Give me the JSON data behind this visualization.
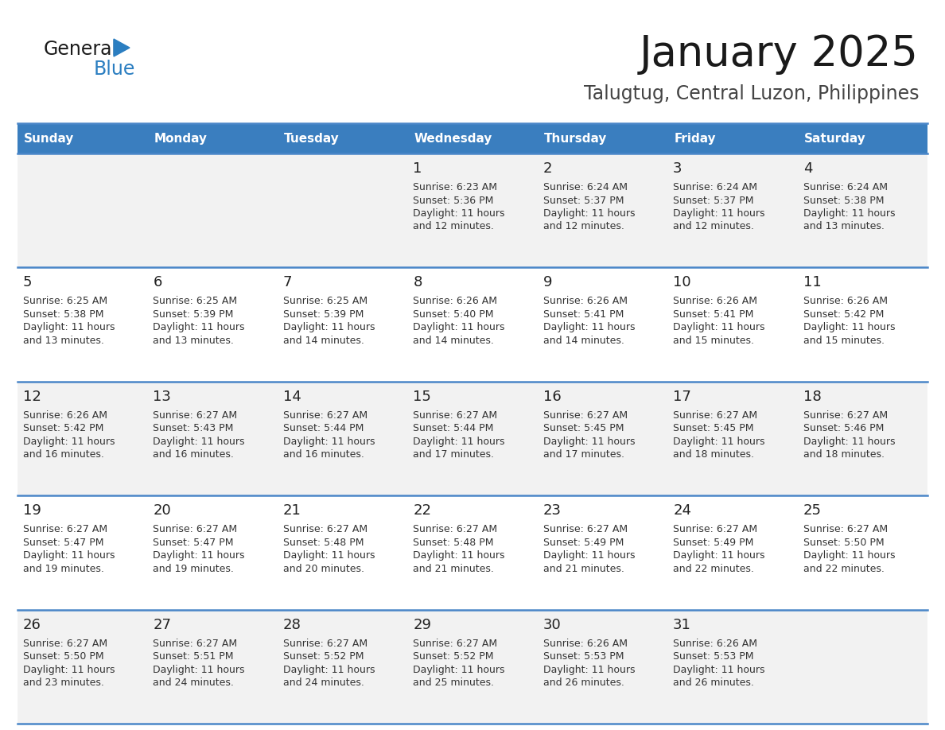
{
  "title": "January 2025",
  "subtitle": "Talugtug, Central Luzon, Philippines",
  "days_of_week": [
    "Sunday",
    "Monday",
    "Tuesday",
    "Wednesday",
    "Thursday",
    "Friday",
    "Saturday"
  ],
  "header_bg": "#3a7ebf",
  "header_text": "#ffffff",
  "row_bg_odd": "#f2f2f2",
  "row_bg_even": "#ffffff",
  "cell_border": "#4a86c8",
  "day_num_color": "#222222",
  "text_color": "#333333",
  "title_color": "#1a1a1a",
  "subtitle_color": "#444444",
  "logo_general_color": "#1a1a1a",
  "logo_blue_color": "#2b7ec1",
  "calendar_data": [
    [
      null,
      null,
      null,
      {
        "day": 1,
        "sunrise": "6:23 AM",
        "sunset": "5:36 PM",
        "daylight_min": "12 minutes."
      },
      {
        "day": 2,
        "sunrise": "6:24 AM",
        "sunset": "5:37 PM",
        "daylight_min": "12 minutes."
      },
      {
        "day": 3,
        "sunrise": "6:24 AM",
        "sunset": "5:37 PM",
        "daylight_min": "12 minutes."
      },
      {
        "day": 4,
        "sunrise": "6:24 AM",
        "sunset": "5:38 PM",
        "daylight_min": "13 minutes."
      }
    ],
    [
      {
        "day": 5,
        "sunrise": "6:25 AM",
        "sunset": "5:38 PM",
        "daylight_min": "13 minutes."
      },
      {
        "day": 6,
        "sunrise": "6:25 AM",
        "sunset": "5:39 PM",
        "daylight_min": "13 minutes."
      },
      {
        "day": 7,
        "sunrise": "6:25 AM",
        "sunset": "5:39 PM",
        "daylight_min": "14 minutes."
      },
      {
        "day": 8,
        "sunrise": "6:26 AM",
        "sunset": "5:40 PM",
        "daylight_min": "14 minutes."
      },
      {
        "day": 9,
        "sunrise": "6:26 AM",
        "sunset": "5:41 PM",
        "daylight_min": "14 minutes."
      },
      {
        "day": 10,
        "sunrise": "6:26 AM",
        "sunset": "5:41 PM",
        "daylight_min": "15 minutes."
      },
      {
        "day": 11,
        "sunrise": "6:26 AM",
        "sunset": "5:42 PM",
        "daylight_min": "15 minutes."
      }
    ],
    [
      {
        "day": 12,
        "sunrise": "6:26 AM",
        "sunset": "5:42 PM",
        "daylight_min": "16 minutes."
      },
      {
        "day": 13,
        "sunrise": "6:27 AM",
        "sunset": "5:43 PM",
        "daylight_min": "16 minutes."
      },
      {
        "day": 14,
        "sunrise": "6:27 AM",
        "sunset": "5:44 PM",
        "daylight_min": "16 minutes."
      },
      {
        "day": 15,
        "sunrise": "6:27 AM",
        "sunset": "5:44 PM",
        "daylight_min": "17 minutes."
      },
      {
        "day": 16,
        "sunrise": "6:27 AM",
        "sunset": "5:45 PM",
        "daylight_min": "17 minutes."
      },
      {
        "day": 17,
        "sunrise": "6:27 AM",
        "sunset": "5:45 PM",
        "daylight_min": "18 minutes."
      },
      {
        "day": 18,
        "sunrise": "6:27 AM",
        "sunset": "5:46 PM",
        "daylight_min": "18 minutes."
      }
    ],
    [
      {
        "day": 19,
        "sunrise": "6:27 AM",
        "sunset": "5:47 PM",
        "daylight_min": "19 minutes."
      },
      {
        "day": 20,
        "sunrise": "6:27 AM",
        "sunset": "5:47 PM",
        "daylight_min": "19 minutes."
      },
      {
        "day": 21,
        "sunrise": "6:27 AM",
        "sunset": "5:48 PM",
        "daylight_min": "20 minutes."
      },
      {
        "day": 22,
        "sunrise": "6:27 AM",
        "sunset": "5:48 PM",
        "daylight_min": "21 minutes."
      },
      {
        "day": 23,
        "sunrise": "6:27 AM",
        "sunset": "5:49 PM",
        "daylight_min": "21 minutes."
      },
      {
        "day": 24,
        "sunrise": "6:27 AM",
        "sunset": "5:49 PM",
        "daylight_min": "22 minutes."
      },
      {
        "day": 25,
        "sunrise": "6:27 AM",
        "sunset": "5:50 PM",
        "daylight_min": "22 minutes."
      }
    ],
    [
      {
        "day": 26,
        "sunrise": "6:27 AM",
        "sunset": "5:50 PM",
        "daylight_min": "23 minutes."
      },
      {
        "day": 27,
        "sunrise": "6:27 AM",
        "sunset": "5:51 PM",
        "daylight_min": "24 minutes."
      },
      {
        "day": 28,
        "sunrise": "6:27 AM",
        "sunset": "5:52 PM",
        "daylight_min": "24 minutes."
      },
      {
        "day": 29,
        "sunrise": "6:27 AM",
        "sunset": "5:52 PM",
        "daylight_min": "25 minutes."
      },
      {
        "day": 30,
        "sunrise": "6:26 AM",
        "sunset": "5:53 PM",
        "daylight_min": "26 minutes."
      },
      {
        "day": 31,
        "sunrise": "6:26 AM",
        "sunset": "5:53 PM",
        "daylight_min": "26 minutes."
      },
      null
    ]
  ]
}
